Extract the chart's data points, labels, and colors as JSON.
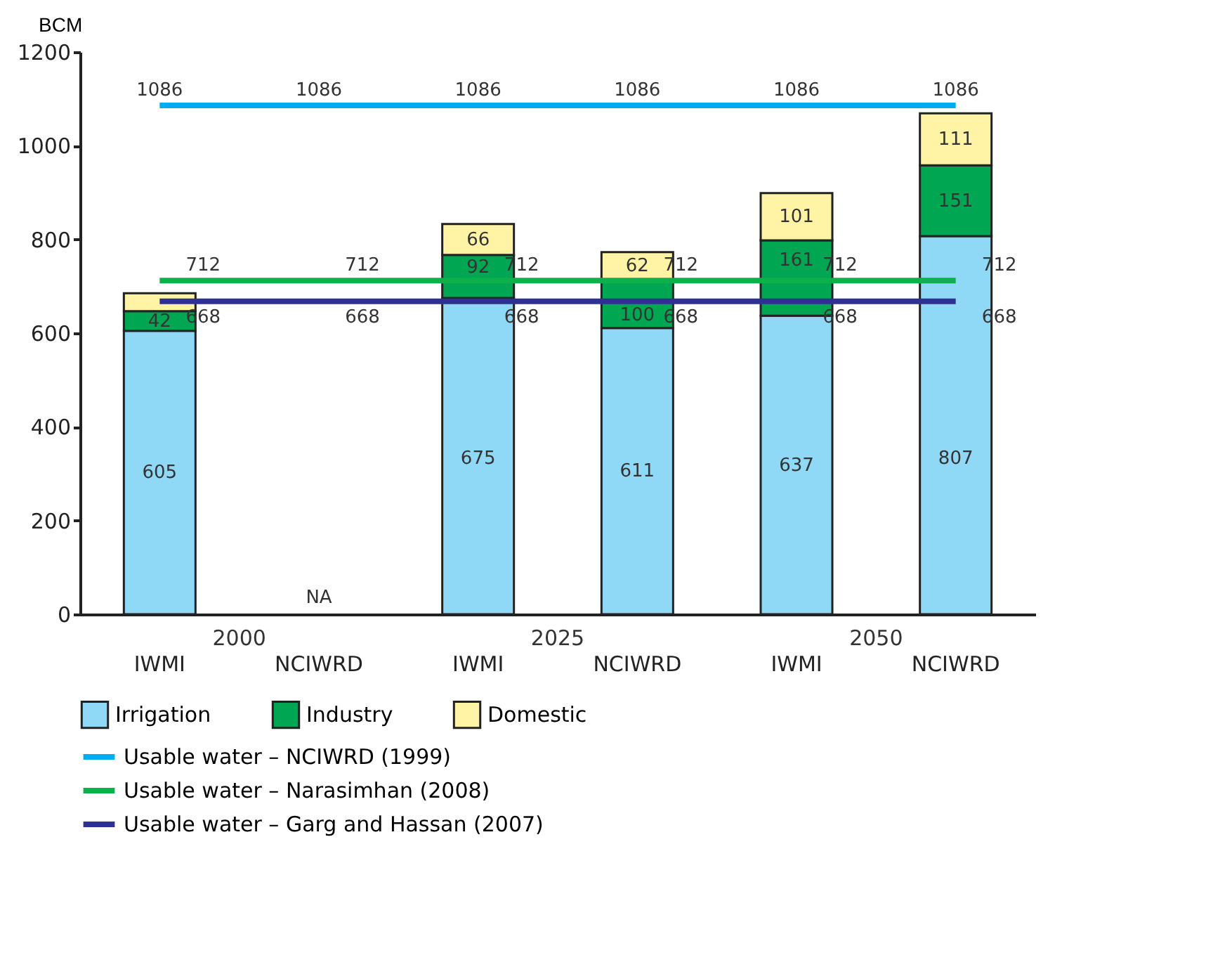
{
  "chart_data": {
    "type": "bar",
    "stacked": true,
    "ylabel": "BCM",
    "categories": [
      "IWMI",
      "NCIWRD",
      "IWMI",
      "NCIWRD",
      "IWMI",
      "NCIWRD"
    ],
    "annotations": [
      "2000",
      "2025",
      "2050"
    ],
    "ylim": [
      0,
      1200
    ],
    "yticks": [
      0,
      200,
      400,
      600,
      800,
      1000,
      1200
    ],
    "grid": false,
    "legend": "bottom",
    "series": [
      {
        "name": "Irrigation",
        "color": "#8fd8f6",
        "values": [
          605,
          null,
          675,
          611,
          637,
          807
        ],
        "value_labels": [
          "605",
          "NA",
          "675",
          "611",
          "637",
          "807"
        ]
      },
      {
        "name": "Industry",
        "color": "#00a651",
        "values": [
          42,
          null,
          92,
          100,
          161,
          151
        ],
        "value_labels": [
          "42",
          null,
          "92",
          "100",
          "161",
          "151"
        ]
      },
      {
        "name": "Domestic",
        "color": "#fff3a6",
        "values": [
          38,
          null,
          66,
          62,
          101,
          111
        ],
        "value_labels": [
          null,
          null,
          "66",
          "62",
          "101",
          "111"
        ]
      },
      {
        "name": "Usable water – NCIWRD (1999)",
        "type": "line",
        "color": "#00aeef",
        "values": [
          1086,
          1086,
          1086,
          1086,
          1086,
          1086
        ],
        "value_labels": [
          "1086",
          "1086",
          "1086",
          "1086",
          "1086",
          "1086"
        ]
      },
      {
        "name": "Usable water – Narasimhan (2008)",
        "type": "line",
        "color": "#0db04b",
        "values": [
          712,
          712,
          712,
          712,
          712,
          712
        ],
        "value_labels": [
          "712",
          "712",
          "712",
          "712",
          "712",
          "712"
        ]
      },
      {
        "name": "Usable water – Garg and Hassan (2007)",
        "type": "line",
        "color": "#2e3192",
        "values": [
          668,
          668,
          668,
          668,
          668,
          668
        ],
        "value_labels": [
          "668",
          "668",
          "668",
          "668",
          "668",
          "668"
        ]
      }
    ]
  }
}
